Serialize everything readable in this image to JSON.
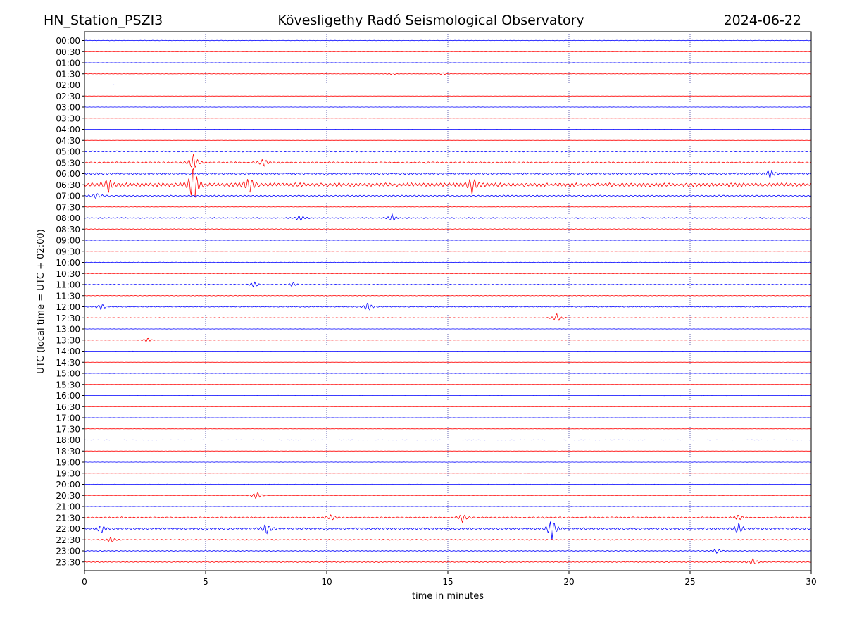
{
  "header": {
    "station": "HN_Station_PSZI3",
    "observatory": "Kövesligethy Radó Seismological Observatory",
    "date": "2024-06-22"
  },
  "chart_data": {
    "type": "line",
    "title": "Kövesligethy Radó Seismological Observatory",
    "xlabel": "time in minutes",
    "ylabel": "UTC (local time = UTC + 02:00)",
    "xlim": [
      0,
      30
    ],
    "x_ticks": [
      "0",
      "5",
      "10",
      "15",
      "20",
      "25",
      "30"
    ],
    "grid": "vertical dotted lines at every 5 minutes",
    "colors": [
      "#0000ff",
      "#ff0000"
    ],
    "row_labels": [
      "00:00",
      "00:30",
      "01:00",
      "01:30",
      "02:00",
      "02:30",
      "03:00",
      "03:30",
      "04:00",
      "04:30",
      "05:00",
      "05:30",
      "06:00",
      "06:30",
      "07:00",
      "07:30",
      "08:00",
      "08:30",
      "09:00",
      "09:30",
      "10:00",
      "10:30",
      "11:00",
      "11:30",
      "12:00",
      "12:30",
      "13:00",
      "13:30",
      "14:00",
      "14:30",
      "15:00",
      "15:30",
      "16:00",
      "16:30",
      "17:00",
      "17:30",
      "18:00",
      "18:30",
      "19:00",
      "19:30",
      "20:00",
      "20:30",
      "21:00",
      "21:30",
      "22:00",
      "22:30",
      "23:00",
      "23:30"
    ],
    "row_activity": [
      0.25,
      0.2,
      0.15,
      0.2,
      0.1,
      0.1,
      0.15,
      0.1,
      0.1,
      0.1,
      0.6,
      0.8,
      0.9,
      2.0,
      0.7,
      0.2,
      0.6,
      0.35,
      0.2,
      0.15,
      0.3,
      0.3,
      0.4,
      0.3,
      0.5,
      0.3,
      0.15,
      0.2,
      0.1,
      0.1,
      0.15,
      0.1,
      0.1,
      0.1,
      0.1,
      0.15,
      0.15,
      0.1,
      0.15,
      0.1,
      0.15,
      0.2,
      0.15,
      0.7,
      1.0,
      0.5,
      0.4,
      0.5
    ],
    "events": [
      {
        "row": 3,
        "minute": 12.7,
        "amplitude": 1.5
      },
      {
        "row": 3,
        "minute": 14.8,
        "amplitude": 1.5
      },
      {
        "row": 11,
        "minute": 4.5,
        "amplitude": 12
      },
      {
        "row": 11,
        "minute": 7.4,
        "amplitude": 6
      },
      {
        "row": 12,
        "minute": 28.3,
        "amplitude": 6
      },
      {
        "row": 13,
        "minute": 1.0,
        "amplitude": 10
      },
      {
        "row": 13,
        "minute": 4.5,
        "amplitude": 30
      },
      {
        "row": 13,
        "minute": 6.8,
        "amplitude": 12
      },
      {
        "row": 13,
        "minute": 16.0,
        "amplitude": 12
      },
      {
        "row": 14,
        "minute": 0.5,
        "amplitude": 4
      },
      {
        "row": 16,
        "minute": 8.9,
        "amplitude": 4
      },
      {
        "row": 16,
        "minute": 12.7,
        "amplitude": 5
      },
      {
        "row": 22,
        "minute": 7.0,
        "amplitude": 4
      },
      {
        "row": 22,
        "minute": 8.6,
        "amplitude": 3
      },
      {
        "row": 24,
        "minute": 0.7,
        "amplitude": 4
      },
      {
        "row": 24,
        "minute": 11.7,
        "amplitude": 6
      },
      {
        "row": 25,
        "minute": 19.5,
        "amplitude": 6
      },
      {
        "row": 27,
        "minute": 2.6,
        "amplitude": 3
      },
      {
        "row": 41,
        "minute": 7.1,
        "amplitude": 6
      },
      {
        "row": 43,
        "minute": 10.2,
        "amplitude": 4
      },
      {
        "row": 43,
        "minute": 15.6,
        "amplitude": 6
      },
      {
        "row": 43,
        "minute": 27.0,
        "amplitude": 4
      },
      {
        "row": 44,
        "minute": 0.7,
        "amplitude": 6
      },
      {
        "row": 44,
        "minute": 7.5,
        "amplitude": 8
      },
      {
        "row": 44,
        "minute": 19.3,
        "amplitude": 16
      },
      {
        "row": 44,
        "minute": 27.0,
        "amplitude": 8
      },
      {
        "row": 45,
        "minute": 1.1,
        "amplitude": 4
      },
      {
        "row": 46,
        "minute": 26.1,
        "amplitude": 3
      },
      {
        "row": 47,
        "minute": 27.6,
        "amplitude": 5
      }
    ]
  }
}
